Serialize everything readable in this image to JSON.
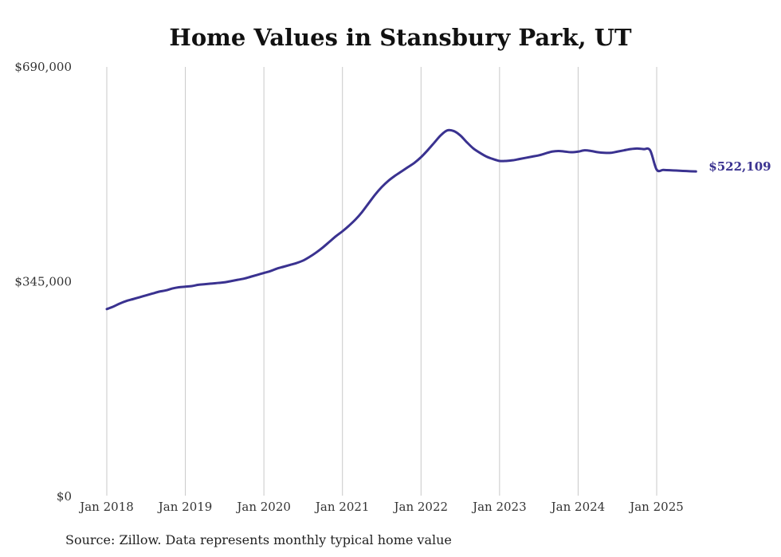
{
  "chart_data": {
    "type": "line",
    "title": "Home Values in Stansbury Park, UT",
    "xlabel": "",
    "ylabel": "",
    "ylim": [
      0,
      690000
    ],
    "y_ticks": [
      {
        "value": 0,
        "label": "$0"
      },
      {
        "value": 345000,
        "label": "$345,000"
      },
      {
        "value": 690000,
        "label": "$690,000"
      }
    ],
    "x_ticks": [
      {
        "date": "2018-01",
        "label": "Jan 2018"
      },
      {
        "date": "2019-01",
        "label": "Jan 2019"
      },
      {
        "date": "2020-01",
        "label": "Jan 2020"
      },
      {
        "date": "2021-01",
        "label": "Jan 2021"
      },
      {
        "date": "2022-01",
        "label": "Jan 2022"
      },
      {
        "date": "2023-01",
        "label": "Jan 2023"
      },
      {
        "date": "2024-01",
        "label": "Jan 2024"
      },
      {
        "date": "2025-01",
        "label": "Jan 2025"
      }
    ],
    "vertical_grid": true,
    "horizontal_grid": false,
    "line_color": "#3a3290",
    "end_label": "$522,109",
    "series": [
      {
        "x": [
          "2018-01",
          "2018-02",
          "2018-03",
          "2018-04",
          "2018-05",
          "2018-06",
          "2018-07",
          "2018-08",
          "2018-09",
          "2018-10",
          "2018-11",
          "2018-12",
          "2019-01",
          "2019-02",
          "2019-03",
          "2019-04",
          "2019-05",
          "2019-06",
          "2019-07",
          "2019-08",
          "2019-09",
          "2019-10",
          "2019-11",
          "2019-12",
          "2020-01",
          "2020-02",
          "2020-03",
          "2020-04",
          "2020-05",
          "2020-06",
          "2020-07",
          "2020-08",
          "2020-09",
          "2020-10",
          "2020-11",
          "2020-12",
          "2021-01",
          "2021-02",
          "2021-03",
          "2021-04",
          "2021-05",
          "2021-06",
          "2021-07",
          "2021-08",
          "2021-09",
          "2021-10",
          "2021-11",
          "2021-12",
          "2022-01",
          "2022-02",
          "2022-03",
          "2022-04",
          "2022-05",
          "2022-06",
          "2022-07",
          "2022-08",
          "2022-09",
          "2022-10",
          "2022-11",
          "2022-12",
          "2023-01",
          "2023-02",
          "2023-03",
          "2023-04",
          "2023-05",
          "2023-06",
          "2023-07",
          "2023-08",
          "2023-09",
          "2023-10",
          "2023-11",
          "2023-12",
          "2024-01",
          "2024-02",
          "2024-03",
          "2024-04",
          "2024-05",
          "2024-06",
          "2024-07",
          "2024-08",
          "2024-09",
          "2024-10",
          "2024-11",
          "2024-12",
          "2025-01",
          "2025-02",
          "2025-03",
          "2025-04",
          "2025-05",
          "2025-06",
          "2025-07"
        ],
        "values": [
          301000,
          305000,
          310000,
          314000,
          317000,
          320000,
          323000,
          326000,
          329000,
          331000,
          334000,
          336000,
          337000,
          338000,
          340000,
          341000,
          342000,
          343000,
          344000,
          346000,
          348000,
          350000,
          353000,
          356000,
          359000,
          362000,
          366000,
          369000,
          372000,
          375000,
          379000,
          385000,
          392000,
          400000,
          409000,
          418000,
          426000,
          435000,
          445000,
          457000,
          471000,
          485000,
          497000,
          507000,
          515000,
          522000,
          529000,
          536000,
          545000,
          556000,
          568000,
          580000,
          588000,
          587000,
          580000,
          569000,
          559000,
          552000,
          546000,
          542000,
          539000,
          539000,
          540000,
          542000,
          544000,
          546000,
          548000,
          551000,
          554000,
          555000,
          554000,
          553000,
          554000,
          556000,
          555000,
          553000,
          552000,
          552000,
          554000,
          556000,
          558000,
          559000,
          558000,
          556000,
          525000,
          524500,
          524000,
          523500,
          523000,
          522500,
          522109
        ]
      }
    ]
  },
  "source_note": "Source: Zillow. Data represents monthly typical home value"
}
